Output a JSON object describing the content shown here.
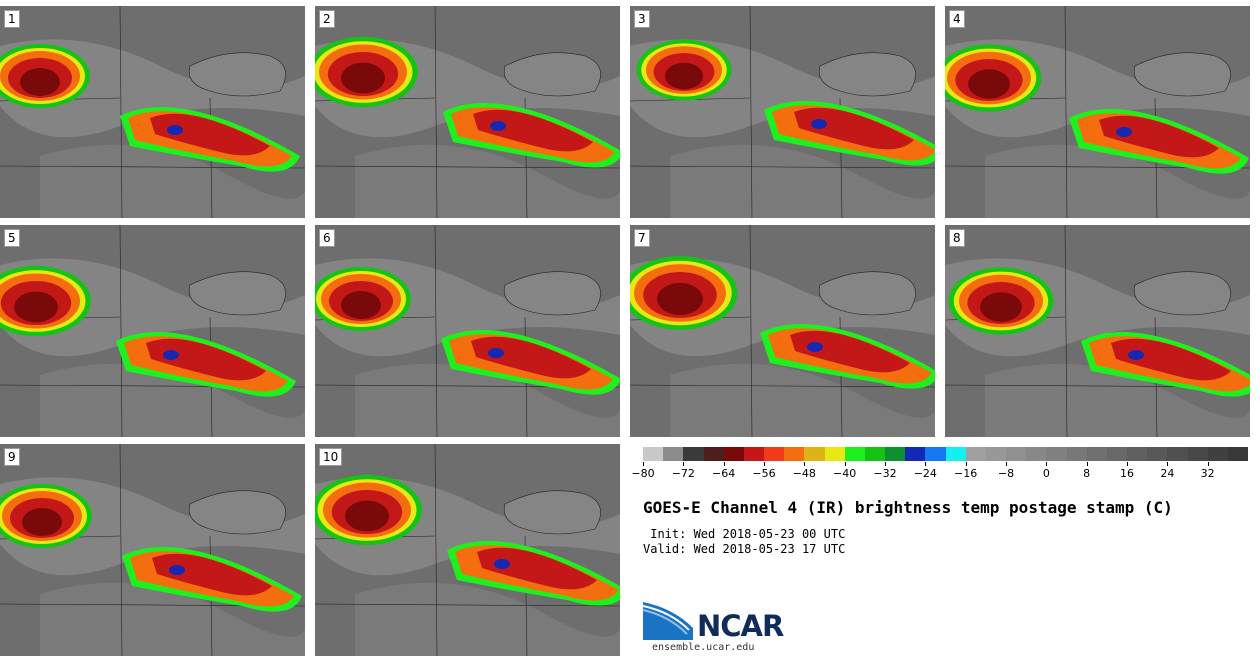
{
  "panels": [
    {
      "label": "1"
    },
    {
      "label": "2"
    },
    {
      "label": "3"
    },
    {
      "label": "4"
    },
    {
      "label": "5"
    },
    {
      "label": "6"
    },
    {
      "label": "7"
    },
    {
      "label": "8"
    },
    {
      "label": "9"
    },
    {
      "label": "10"
    }
  ],
  "colorbar": {
    "colors": [
      "#c8c8c8",
      "#8c8c8c",
      "#3a3a3a",
      "#4e1e1e",
      "#7a0a0a",
      "#c41818",
      "#f03a1a",
      "#f46e10",
      "#dcb416",
      "#e8e814",
      "#1ef01e",
      "#14c314",
      "#0c9030",
      "#1428b4",
      "#1478f0",
      "#14f0f0",
      "#a0a0a0",
      "#989898",
      "#909090",
      "#888888",
      "#808080",
      "#787878",
      "#707070",
      "#686868",
      "#606060",
      "#585858",
      "#505050",
      "#484848",
      "#404040",
      "#383838"
    ],
    "tick_labels": [
      "−80",
      "−72",
      "−64",
      "−56",
      "−48",
      "−40",
      "−32",
      "−24",
      "−16",
      "−8",
      "0",
      "8",
      "16",
      "24",
      "32"
    ]
  },
  "title": "GOES-E Channel 4 (IR) brightness temp postage stamp (C)",
  "init_line": " Init: Wed 2018-05-23 00 UTC",
  "valid_line": "Valid: Wed 2018-05-23 17 UTC",
  "logo_text": "NCAR",
  "site": "ensemble.ucar.edu"
}
